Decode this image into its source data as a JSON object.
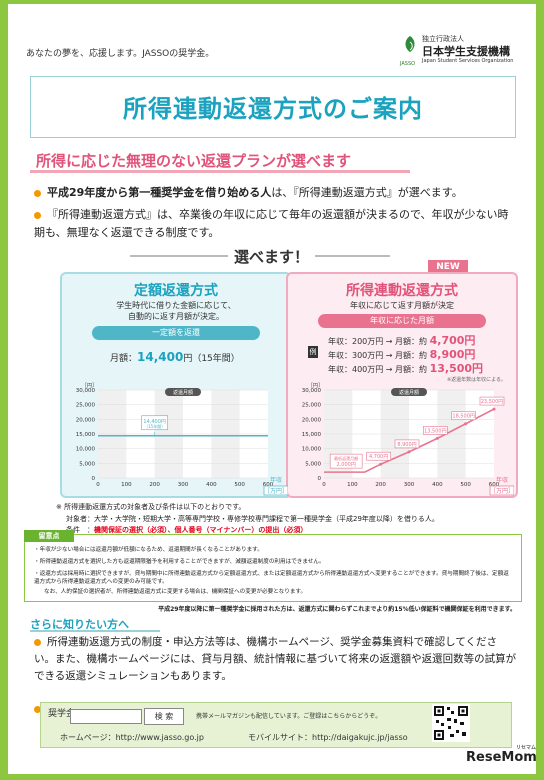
{
  "header": {
    "tagline": "あなたの夢を、応援します。JASSOの奨学金。",
    "org_small": "独立行政法人",
    "org_name": "日本学生支援機構",
    "org_english": "Japan Student Services Organization",
    "org_abbrev": "JASSO"
  },
  "title": "所得連動返還方式のご案内",
  "section1": {
    "heading": "所得に応じた無理のない返還プランが選べます",
    "bullet1_bold": "平成29年度から第一種奨学金を借り始める人",
    "bullet1_rest": "は、『所得連動返還方式』が選べます。",
    "bullet2": "『所得連動返還方式』は、卒業後の年収に応じて毎年の返還額が決まるので、年収が少ない時期も、無理なく返還できる制度です。"
  },
  "choose_label": "選べます！",
  "fixed": {
    "title": "定額返還方式",
    "desc1": "学生時代に借りた金額に応じて、",
    "desc2": "自動的に返す月額が決定。",
    "pill": "一定額を返還",
    "monthly_label": "月額：",
    "monthly_value": "14,400",
    "monthly_unit": "円（15年間）",
    "chart_title": "返還月額",
    "y_unit": "［円］",
    "x_label": "年収",
    "x_unit": "［万円］",
    "value_label": "14,400円",
    "value_sub": "（15年間）"
  },
  "income": {
    "new_badge": "NEW",
    "title": "所得連動返還方式",
    "desc": "年収に応じて返す月額が決定",
    "pill": "年収に応じた月額",
    "example_tag": "例",
    "rows": [
      {
        "label": "年収：200万円 → 月額：約",
        "value": "4,700円"
      },
      {
        "label": "年収：300万円 → 月額：約",
        "value": "8,900円"
      },
      {
        "label": "年収：400万円 → 月額：約",
        "value": "13,500円"
      }
    ],
    "footnote": "※返還年数は年収による。",
    "chart_title": "返還月額",
    "y_unit": "［円］",
    "x_label": "年収",
    "x_unit": "［万円］",
    "min_label": "最低返還月額",
    "min_value": "2,000円",
    "labels": [
      "4,700円",
      "8,900円",
      "13,500円",
      "18,500円",
      "23,500円"
    ]
  },
  "chart_data": [
    {
      "type": "line",
      "title": "返還月額",
      "xlabel": "年収［万円］",
      "ylabel": "［円］",
      "x": [
        0,
        100,
        200,
        300,
        400,
        500,
        600
      ],
      "series": [
        {
          "values": [
            14400,
            14400,
            14400,
            14400,
            14400,
            14400,
            14400
          ]
        }
      ],
      "ylim": [
        0,
        30000
      ],
      "yticks": [
        0,
        5000,
        10000,
        15000,
        20000,
        25000,
        30000
      ],
      "xticks": [
        0,
        100,
        200,
        300,
        400,
        500,
        600
      ]
    },
    {
      "type": "line",
      "title": "返還月額",
      "xlabel": "年収［万円］",
      "ylabel": "［円］",
      "x": [
        0,
        100,
        144,
        200,
        300,
        400,
        500,
        600
      ],
      "series": [
        {
          "values": [
            2000,
            2000,
            2000,
            4700,
            8900,
            13500,
            18500,
            23500
          ]
        }
      ],
      "ylim": [
        0,
        30000
      ],
      "yticks": [
        0,
        5000,
        10000,
        15000,
        20000,
        25000,
        30000
      ],
      "xticks": [
        0,
        100,
        200,
        300,
        400,
        500,
        600
      ]
    }
  ],
  "notes": {
    "line1": "※ 所得連動返還方式の対象者及び条件は以下のとおりです。",
    "line2": "対象者：大学・大学院・短期大学・高等専門学校・専修学校専門課程で第一種奨学金（平成29年度以降）を借りる人。",
    "line3_label": "条件　：",
    "line3_red": "機関保証の選択（必須）、個人番号（マイナンバー）の提出（必須）"
  },
  "caution": {
    "head": "留意点",
    "items": [
      "・年収が少ない場合には返還月額が低額になるため、返還期間が長くなることがあります。",
      "・所得連動返還方式を選択した方も返還期限猶予を利用することができますが、減額返還制度の利用はできません。",
      "・返還方式は採用時に選択できますが、貸与期間中に所得連動返還方式から定額返還方式、または定額返還方式から所得連動返還方式へ変更することができます。貸与期間終了後は、定額返還方式から所得連動返還方式への変更のみ可能です。",
      "なお、人的保証の選択者が、所得連動返還方式に変更する場合は、機関保証への変更が必要となります。"
    ],
    "bold": "平成29年度以降に第一種奨学金に採用された方は、返還方式に関わらずこれまでより約15%低い保証料で機関保証を利用できます。"
  },
  "more": {
    "heading": "さらに知りたい方へ",
    "text": "所得連動返還方式の制度・申込方法等は、機構ホームページ、奨学金募集資料で確認してください。また、機構ホームページには、貸与月額、統計情報に基づいて将来の返還額や返還回数等の試算ができる返還シミュレーションもあります。"
  },
  "search": {
    "label": "奨学金",
    "button": "検 索",
    "note": "携帯メールマガジンも配信しています。ご登録はこちらからどうぞ。",
    "homepage": "ホームページ：http://www.jasso.go.jp",
    "mobile": "モバイルサイト：http://daigakujc.jp/jasso"
  },
  "watermark": {
    "brand": "ReseMom",
    "sub": "リセマム"
  },
  "colors": {
    "border_green": "#8dc63f",
    "title_blue": "#1aa2bf",
    "accent_pink": "#e2537a",
    "bullet_orange": "#f39800"
  }
}
